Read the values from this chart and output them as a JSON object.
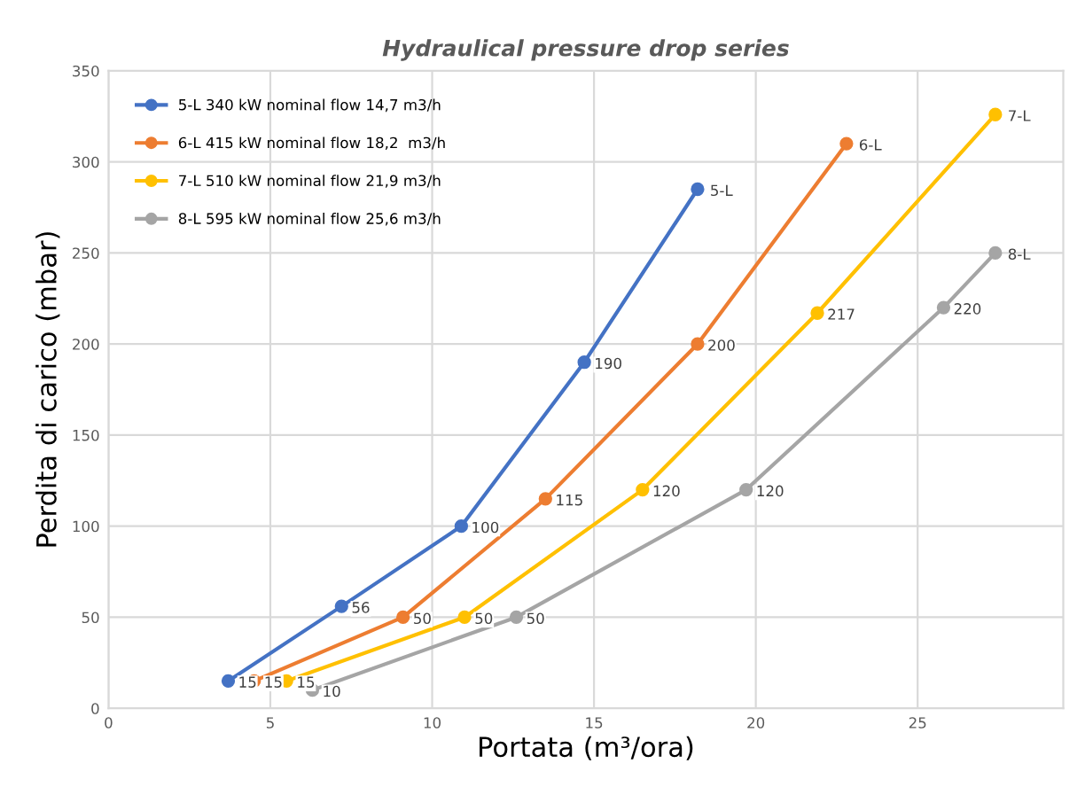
{
  "chart_data": {
    "type": "line",
    "title": "Hydraulical pressure drop series",
    "xlabel": "Portata (m³/ora)",
    "ylabel": "Perdita di carico (mbar)",
    "xlim": [
      0,
      29.5
    ],
    "xticks": [
      0,
      5,
      10,
      15,
      20,
      25
    ],
    "ylim": [
      0,
      350
    ],
    "yticks": [
      0,
      50,
      100,
      150,
      200,
      250,
      300,
      350
    ],
    "grid": true,
    "legend": "top left",
    "marker": "circle",
    "line_style": "solid",
    "series": [
      {
        "name": "5-L 340 kW nominal flow 14,7 m3/h",
        "color": "#4472c4",
        "x": [
          3.7,
          7.2,
          10.9,
          14.7,
          18.2
        ],
        "values": [
          15,
          56,
          100,
          190,
          285
        ],
        "value_labels": [
          "15",
          "56",
          "100",
          "190",
          null
        ]
      },
      {
        "name": "6-L 415 kW nominal flow 18,2  m3/h",
        "color": "#ed7d31",
        "x": [
          4.5,
          9.1,
          13.5,
          18.2,
          22.8
        ],
        "values": [
          15,
          50,
          115,
          200,
          310
        ],
        "value_labels": [
          "15",
          "50",
          "115",
          "200",
          null
        ]
      },
      {
        "name": "7-L 510 kW nominal flow 21,9 m3/h",
        "color": "#ffc000",
        "x": [
          5.5,
          11.0,
          16.5,
          21.9,
          27.4
        ],
        "values": [
          15,
          50,
          120,
          217,
          326
        ],
        "value_labels": [
          "15",
          "50",
          "120",
          "217",
          null
        ]
      },
      {
        "name": "8-L 595 kW nominal flow 25,6 m3/h",
        "color": "#a5a5a5",
        "x": [
          6.3,
          12.6,
          19.7,
          25.8,
          27.4
        ],
        "values": [
          10,
          50,
          120,
          220,
          250
        ],
        "value_labels": [
          "10",
          "50",
          "120",
          "220",
          null
        ]
      }
    ],
    "annotations": [
      {
        "text": "5-L",
        "x": 18.2,
        "y": 285
      },
      {
        "text": "6-L",
        "x": 22.8,
        "y": 310
      },
      {
        "text": "7-L",
        "x": 27.4,
        "y": 326
      },
      {
        "text": "8-L",
        "x": 27.4,
        "y": 250
      }
    ]
  }
}
